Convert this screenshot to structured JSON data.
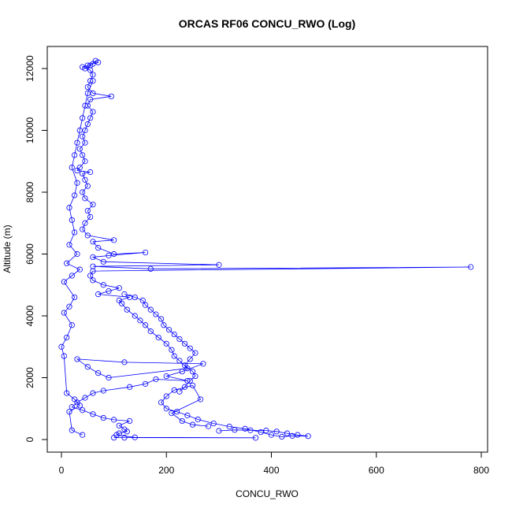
{
  "chart_data": {
    "type": "scatter",
    "title": "ORCAS RF06 CONCU_RWO (Log)",
    "xlabel": "CONCU_RWO",
    "ylabel": "Altitude (m)",
    "xlim": [
      0,
      800
    ],
    "ylim": [
      0,
      12000
    ],
    "x_ticks": [
      0,
      200,
      400,
      600,
      800
    ],
    "y_ticks": [
      0,
      2000,
      4000,
      6000,
      8000,
      10000,
      12000
    ],
    "marker": "open-circle",
    "connected": true,
    "series_color": "#0000ff",
    "series": [
      {
        "points": [
          [
            100,
            60
          ],
          [
            120,
            60
          ],
          [
            370,
            55
          ],
          [
            140,
            70
          ],
          [
            105,
            150
          ],
          [
            110,
            200
          ],
          [
            125,
            260
          ],
          [
            120,
            330
          ],
          [
            110,
            450
          ],
          [
            130,
            600
          ],
          [
            100,
            640
          ],
          [
            80,
            700
          ],
          [
            60,
            820
          ],
          [
            40,
            950
          ],
          [
            20,
            1050
          ],
          [
            30,
            1200
          ],
          [
            45,
            1350
          ],
          [
            60,
            1500
          ],
          [
            80,
            1580
          ],
          [
            130,
            1700
          ],
          [
            160,
            1800
          ],
          [
            180,
            1950
          ],
          [
            240,
            1900
          ],
          [
            200,
            2050
          ],
          [
            230,
            2200
          ],
          [
            270,
            2450
          ],
          [
            120,
            2500
          ],
          [
            30,
            2600
          ],
          [
            50,
            2350
          ],
          [
            70,
            2150
          ],
          [
            90,
            2000
          ],
          [
            240,
            2300
          ],
          [
            225,
            2550
          ],
          [
            215,
            2700
          ],
          [
            210,
            2900
          ],
          [
            200,
            3100
          ],
          [
            185,
            3300
          ],
          [
            170,
            3500
          ],
          [
            160,
            3700
          ],
          [
            150,
            3850
          ],
          [
            140,
            4000
          ],
          [
            125,
            4200
          ],
          [
            115,
            4400
          ],
          [
            110,
            4500
          ],
          [
            130,
            4600
          ],
          [
            70,
            4700
          ],
          [
            90,
            4800
          ],
          [
            110,
            4900
          ],
          [
            80,
            5000
          ],
          [
            60,
            5150
          ],
          [
            55,
            5300
          ],
          [
            60,
            5450
          ],
          [
            780,
            5580
          ],
          [
            170,
            5520
          ],
          [
            60,
            5600
          ],
          [
            300,
            5650
          ],
          [
            80,
            5750
          ],
          [
            60,
            5900
          ],
          [
            90,
            5950
          ],
          [
            160,
            6050
          ],
          [
            100,
            6000
          ],
          [
            70,
            6200
          ],
          [
            60,
            6400
          ],
          [
            100,
            6450
          ],
          [
            50,
            6600
          ],
          [
            40,
            6800
          ],
          [
            45,
            7000
          ],
          [
            55,
            7200
          ],
          [
            50,
            7400
          ],
          [
            60,
            7600
          ],
          [
            45,
            7800
          ],
          [
            40,
            8000
          ],
          [
            50,
            8200
          ],
          [
            45,
            8400
          ],
          [
            40,
            8600
          ],
          [
            55,
            8650
          ],
          [
            30,
            8700
          ],
          [
            35,
            8800
          ],
          [
            45,
            9000
          ],
          [
            40,
            9200
          ],
          [
            35,
            9400
          ],
          [
            45,
            9600
          ],
          [
            40,
            9800
          ],
          [
            45,
            10000
          ],
          [
            50,
            10200
          ],
          [
            55,
            10400
          ],
          [
            60,
            10600
          ],
          [
            50,
            10800
          ],
          [
            55,
            11000
          ],
          [
            95,
            11100
          ],
          [
            60,
            11200
          ],
          [
            50,
            11400
          ],
          [
            55,
            11600
          ],
          [
            60,
            11800
          ],
          [
            55,
            11950
          ],
          [
            40,
            12050
          ],
          [
            50,
            12100
          ],
          [
            60,
            12150
          ],
          [
            70,
            12200
          ],
          [
            65,
            12250
          ],
          [
            55,
            12100
          ],
          [
            45,
            12000
          ]
        ]
      },
      {
        "points": [
          [
            40,
            150
          ],
          [
            20,
            300
          ],
          [
            15,
            900
          ],
          [
            35,
            1100
          ],
          [
            25,
            1300
          ],
          [
            10,
            1500
          ],
          [
            5,
            2700
          ],
          [
            0,
            3000
          ],
          [
            10,
            3300
          ],
          [
            20,
            3700
          ],
          [
            5,
            4100
          ],
          [
            15,
            4300
          ],
          [
            25,
            4600
          ],
          [
            5,
            5100
          ],
          [
            20,
            5300
          ],
          [
            35,
            5500
          ],
          [
            10,
            5700
          ],
          [
            30,
            6000
          ],
          [
            15,
            6300
          ],
          [
            25,
            6700
          ],
          [
            20,
            7100
          ],
          [
            15,
            7500
          ],
          [
            25,
            7900
          ],
          [
            30,
            8300
          ],
          [
            20,
            8800
          ],
          [
            25,
            9200
          ],
          [
            30,
            9600
          ],
          [
            35,
            10000
          ],
          [
            40,
            10400
          ],
          [
            45,
            10800
          ],
          [
            50,
            11200
          ],
          [
            60,
            11600
          ]
        ]
      },
      {
        "points": [
          [
            300,
            280
          ],
          [
            330,
            310
          ],
          [
            360,
            300
          ],
          [
            390,
            290
          ],
          [
            410,
            260
          ],
          [
            430,
            200
          ],
          [
            450,
            150
          ],
          [
            470,
            110
          ],
          [
            440,
            120
          ],
          [
            420,
            90
          ],
          [
            400,
            150
          ],
          [
            380,
            240
          ],
          [
            350,
            350
          ],
          [
            320,
            420
          ],
          [
            290,
            520
          ],
          [
            260,
            650
          ],
          [
            240,
            780
          ],
          [
            220,
            900
          ],
          [
            200,
            1000
          ],
          [
            190,
            1200
          ],
          [
            200,
            1400
          ],
          [
            215,
            1600
          ],
          [
            250,
            1750
          ],
          [
            265,
            1300
          ],
          [
            210,
            850
          ],
          [
            230,
            600
          ],
          [
            250,
            480
          ],
          [
            280,
            430
          ]
        ]
      },
      {
        "points": [
          [
            120,
            4700
          ],
          [
            140,
            4600
          ],
          [
            155,
            4500
          ],
          [
            160,
            4350
          ],
          [
            170,
            4200
          ],
          [
            180,
            4050
          ],
          [
            190,
            3900
          ],
          [
            195,
            3700
          ],
          [
            205,
            3550
          ],
          [
            215,
            3400
          ],
          [
            225,
            3250
          ],
          [
            235,
            3100
          ],
          [
            245,
            2950
          ],
          [
            255,
            2800
          ],
          [
            245,
            2600
          ],
          [
            235,
            2400
          ],
          [
            250,
            2200
          ],
          [
            255,
            2050
          ],
          [
            245,
            1900
          ],
          [
            235,
            1700
          ],
          [
            225,
            1550
          ]
        ]
      }
    ]
  }
}
